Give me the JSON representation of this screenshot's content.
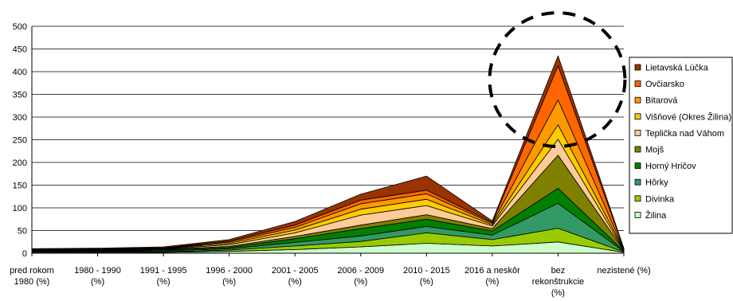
{
  "chart_data": {
    "type": "area",
    "stacked": true,
    "title": "",
    "xlabel": "",
    "ylabel": "",
    "ylim": [
      0,
      500
    ],
    "yticks": [
      0,
      50,
      100,
      150,
      200,
      250,
      300,
      350,
      400,
      450,
      500
    ],
    "grid": true,
    "legend_position": "right",
    "categories": [
      [
        "pred rokom",
        "1980 (%)"
      ],
      [
        "1980 - 1990",
        "(%)"
      ],
      [
        "1991 - 1995",
        "(%)"
      ],
      [
        "1996 - 2000",
        "(%)"
      ],
      [
        "2001 - 2005",
        "(%)"
      ],
      [
        "2006 - 2009",
        "(%)"
      ],
      [
        "2010 - 2015",
        "(%)"
      ],
      [
        "2016 a neskôr",
        "(%)"
      ],
      [
        "bez",
        "rekonštrukcie",
        "(%)"
      ],
      [
        "nezistené (%)"
      ]
    ],
    "series": [
      {
        "name": "Žilina",
        "color": "#ccffcc",
        "values": [
          2,
          2,
          2,
          4,
          8,
          14,
          22,
          16,
          25,
          2
        ]
      },
      {
        "name": "Divinka",
        "color": "#99cc00",
        "values": [
          1,
          1,
          1,
          3,
          8,
          12,
          23,
          14,
          30,
          1
        ]
      },
      {
        "name": "Hôrky",
        "color": "#339966",
        "values": [
          1,
          1,
          2,
          3,
          8,
          12,
          14,
          10,
          55,
          1
        ]
      },
      {
        "name": "Horný Hričov",
        "color": "#008000",
        "values": [
          1,
          1,
          2,
          3,
          8,
          16,
          16,
          9,
          33,
          1
        ]
      },
      {
        "name": "Mojš",
        "color": "#808000",
        "values": [
          0,
          1,
          1,
          2,
          5,
          8,
          10,
          5,
          73,
          1
        ]
      },
      {
        "name": "Teplička nad Váhom",
        "color": "#ffcc99",
        "values": [
          1,
          1,
          1,
          4,
          8,
          22,
          20,
          6,
          35,
          1
        ]
      },
      {
        "name": "Višňové (Okres Žilina)",
        "color": "#ffcc00",
        "values": [
          1,
          1,
          1,
          3,
          6,
          13,
          14,
          3,
          32,
          1
        ]
      },
      {
        "name": "Bitarová",
        "color": "#ff9900",
        "values": [
          1,
          1,
          1,
          3,
          6,
          12,
          12,
          3,
          55,
          1
        ]
      },
      {
        "name": "Ovčiarsko",
        "color": "#ff6600",
        "values": [
          1,
          1,
          1,
          2,
          5,
          8,
          8,
          2,
          75,
          1
        ]
      },
      {
        "name": "Lietavská Lúčka",
        "color": "#993300",
        "values": [
          1,
          1,
          2,
          3,
          8,
          13,
          31,
          3,
          22,
          1
        ]
      }
    ]
  }
}
